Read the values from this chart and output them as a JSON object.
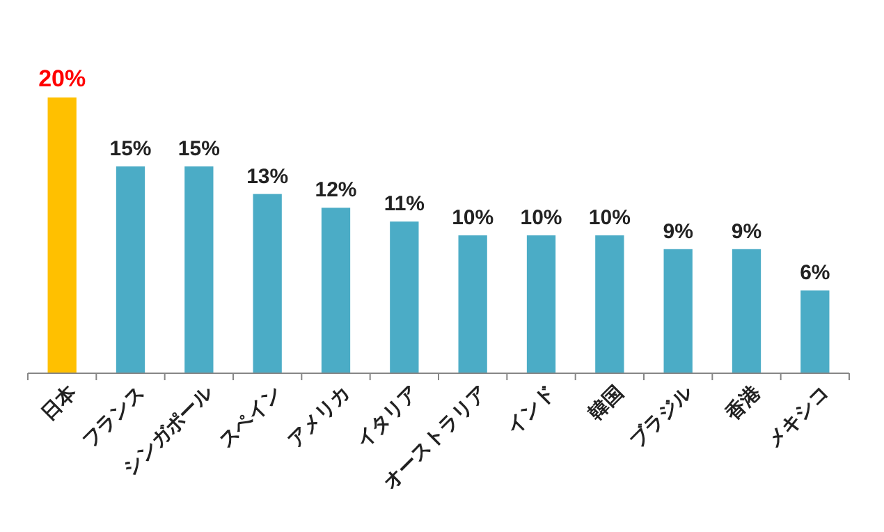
{
  "chart_data": {
    "type": "bar",
    "categories": [
      "日本",
      "フランス",
      "シンガポール",
      "スペイン",
      "アメリカ",
      "イタリア",
      "オーストラリア",
      "インド",
      "韓国",
      "ブラジル",
      "香港",
      "メキシコ"
    ],
    "values": [
      20,
      15,
      15,
      13,
      12,
      11,
      10,
      10,
      10,
      9,
      9,
      6
    ],
    "value_labels": [
      "20%",
      "15%",
      "15%",
      "13%",
      "12%",
      "11%",
      "10%",
      "10%",
      "10%",
      "9%",
      "9%",
      "6%"
    ],
    "colors": [
      "#ffc000",
      "#4bacc6",
      "#4bacc6",
      "#4bacc6",
      "#4bacc6",
      "#4bacc6",
      "#4bacc6",
      "#4bacc6",
      "#4bacc6",
      "#4bacc6",
      "#4bacc6",
      "#4bacc6"
    ]
  }
}
